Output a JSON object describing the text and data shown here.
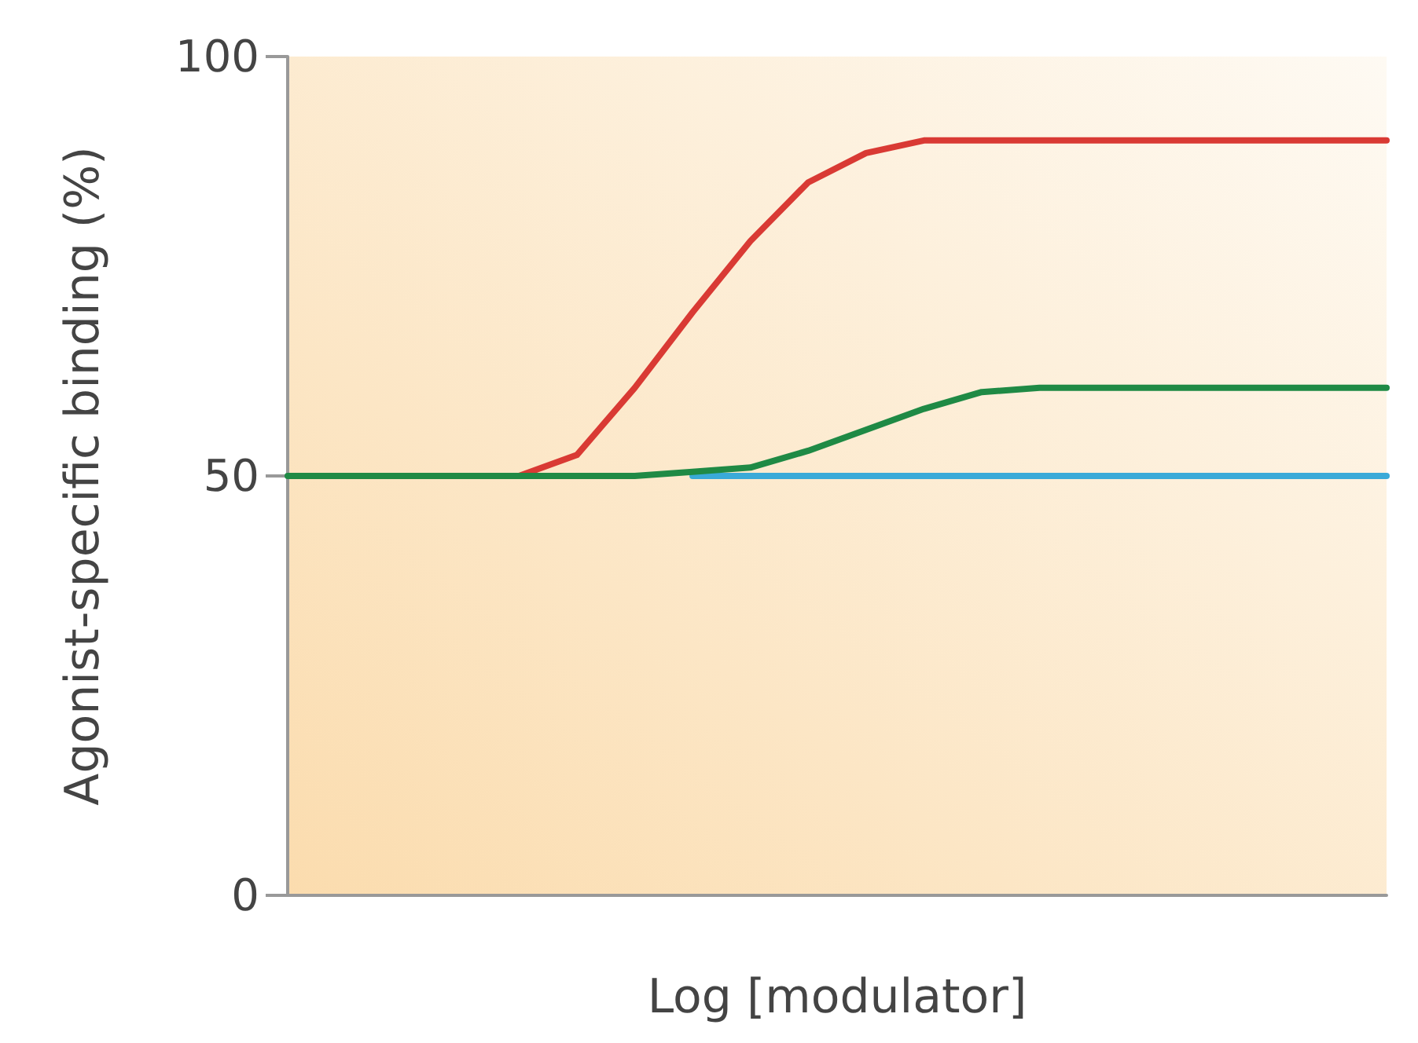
{
  "chart_data": {
    "type": "line",
    "xlabel": "Log [modulator]",
    "ylabel": "Agonist-specific binding (%)",
    "categories": [
      null,
      null,
      null,
      null,
      null,
      null,
      null,
      null,
      null,
      null,
      null,
      null,
      null,
      null,
      null,
      null,
      null,
      null,
      null,
      null
    ],
    "series": [
      {
        "color": "#3aaad8",
        "values": [
          null,
          null,
          null,
          null,
          null,
          null,
          null,
          50,
          50,
          50,
          50,
          50,
          50,
          50,
          50,
          50,
          50,
          50,
          50,
          50
        ]
      },
      {
        "color": "#d93a34",
        "values": [
          null,
          null,
          null,
          null,
          50,
          52.5,
          60.5,
          69.5,
          78,
          85,
          88.5,
          90,
          90,
          90,
          90,
          90,
          90,
          90,
          90,
          90
        ]
      },
      {
        "color": "#1f8a45",
        "values": [
          50,
          50,
          50,
          50,
          50,
          50,
          50,
          50.5,
          51,
          53,
          55.5,
          58,
          60,
          60.5,
          60.5,
          60.5,
          60.5,
          60.5,
          60.5,
          60.5
        ]
      }
    ],
    "ylim": [
      0,
      100
    ],
    "yticks": [
      0,
      50,
      100
    ],
    "grid": false,
    "marker": "none",
    "line_style": "solid",
    "tick_labels": "y"
  }
}
